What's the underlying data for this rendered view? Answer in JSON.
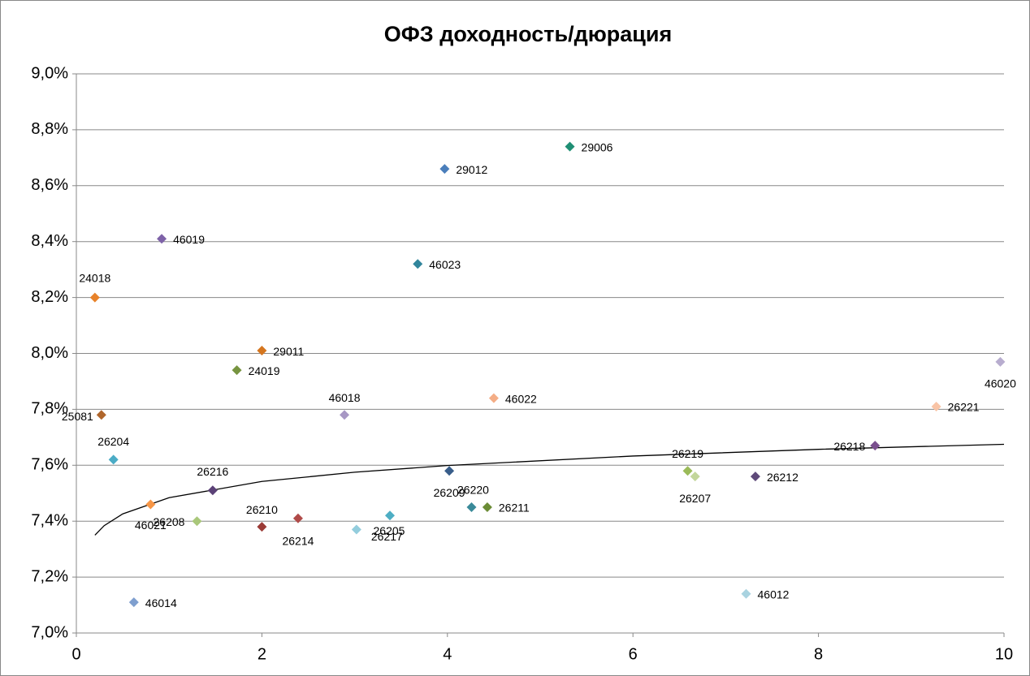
{
  "chart_data": {
    "type": "scatter",
    "title": "ОФЗ доходность/дюрация",
    "xlim": [
      0,
      10
    ],
    "xticks": [
      0,
      2,
      4,
      6,
      8,
      10
    ],
    "ylim": [
      7,
      9
    ],
    "yticks": [
      {
        "value": 7,
        "label": "7,0%"
      },
      {
        "value": 7.2,
        "label": "7,2%"
      },
      {
        "value": 7.4,
        "label": "7,4%"
      },
      {
        "value": 7.6,
        "label": "7,6%"
      },
      {
        "value": 7.8,
        "label": "7,8%"
      },
      {
        "value": 8,
        "label": "8,0%"
      },
      {
        "value": 8.2,
        "label": "8,2%"
      },
      {
        "value": 8.4,
        "label": "8,4%"
      },
      {
        "value": 8.6,
        "label": "8,6%"
      },
      {
        "value": 8.8,
        "label": "8,8%"
      },
      {
        "value": 9,
        "label": "9,0%"
      }
    ],
    "grid": true,
    "series": [
      {
        "name": "29006",
        "color": "#1f8f74",
        "x": [
          5.32
        ],
        "values": [
          8.74
        ]
      },
      {
        "name": "29012",
        "color": "#4a7ebb",
        "x": [
          3.97
        ],
        "values": [
          8.66
        ]
      },
      {
        "name": "46019",
        "color": "#7e62a8",
        "x": [
          0.92
        ],
        "values": [
          8.41
        ]
      },
      {
        "name": "46023",
        "color": "#31859c",
        "x": [
          3.68
        ],
        "values": [
          8.32
        ]
      },
      {
        "name": "24018",
        "color": "#e8822a",
        "x": [
          0.2
        ],
        "values": [
          8.2
        ]
      },
      {
        "name": "29011",
        "color": "#d5761f",
        "x": [
          2.0
        ],
        "values": [
          8.01
        ]
      },
      {
        "name": "24019",
        "color": "#779440",
        "x": [
          1.73
        ],
        "values": [
          7.94
        ]
      },
      {
        "name": "46020",
        "color": "#b8adcf",
        "x": [
          9.96
        ],
        "values": [
          7.97
        ]
      },
      {
        "name": "46022",
        "color": "#f4ad86",
        "x": [
          4.5
        ],
        "values": [
          7.84
        ]
      },
      {
        "name": "26221",
        "color": "#f9c4a6",
        "x": [
          9.27
        ],
        "values": [
          7.81
        ]
      },
      {
        "name": "25081",
        "color": "#b0662c",
        "x": [
          0.27
        ],
        "values": [
          7.78
        ]
      },
      {
        "name": "46018",
        "color": "#a797c4",
        "x": [
          2.89
        ],
        "values": [
          7.78
        ]
      },
      {
        "name": "26204",
        "color": "#4bacc6",
        "x": [
          0.4
        ],
        "values": [
          7.62
        ]
      },
      {
        "name": "26218",
        "color": "#7a4f8e",
        "x": [
          8.61
        ],
        "values": [
          7.67
        ]
      },
      {
        "name": "26219",
        "color": "#9bbb59",
        "x": [
          6.59
        ],
        "values": [
          7.58
        ]
      },
      {
        "name": "26207",
        "color": "#c3d69b",
        "x": [
          6.67
        ],
        "values": [
          7.56
        ]
      },
      {
        "name": "26212",
        "color": "#5f4a7a",
        "x": [
          7.32
        ],
        "values": [
          7.56
        ]
      },
      {
        "name": "26209",
        "color": "#385d8a",
        "x": [
          4.02
        ],
        "values": [
          7.58
        ]
      },
      {
        "name": "26216",
        "color": "#5b4177",
        "x": [
          1.47
        ],
        "values": [
          7.51
        ]
      },
      {
        "name": "26220",
        "color": "#3a8a99",
        "x": [
          4.26
        ],
        "values": [
          7.45
        ]
      },
      {
        "name": "26211",
        "color": "#6b8c35",
        "x": [
          4.43
        ],
        "values": [
          7.45
        ]
      },
      {
        "name": "46021",
        "color": "#f79646",
        "x": [
          0.8
        ],
        "values": [
          7.46
        ]
      },
      {
        "name": "26208",
        "color": "#a9c77a",
        "x": [
          1.3
        ],
        "values": [
          7.4
        ]
      },
      {
        "name": "26210",
        "color": "#9b3b36",
        "x": [
          2.0
        ],
        "values": [
          7.38
        ]
      },
      {
        "name": "26214",
        "color": "#b04a48",
        "x": [
          2.39
        ],
        "values": [
          7.41
        ]
      },
      {
        "name": "26205",
        "color": "#4eaec4",
        "x": [
          3.38
        ],
        "values": [
          7.42
        ]
      },
      {
        "name": "26217",
        "color": "#93cddd",
        "x": [
          3.02
        ],
        "values": [
          7.37
        ]
      },
      {
        "name": "46014",
        "color": "#7f9fcf",
        "x": [
          0.62
        ],
        "values": [
          7.11
        ]
      },
      {
        "name": "46012",
        "color": "#a9d3e0",
        "x": [
          7.22
        ],
        "values": [
          7.14
        ]
      }
    ],
    "trendline": {
      "color": "#000000",
      "x": [
        0.2,
        0.3,
        0.5,
        1,
        2,
        3,
        4,
        6,
        8,
        10
      ],
      "values": [
        7.35,
        7.384,
        7.426,
        7.484,
        7.542,
        7.575,
        7.599,
        7.633,
        7.657,
        7.675
      ]
    }
  }
}
